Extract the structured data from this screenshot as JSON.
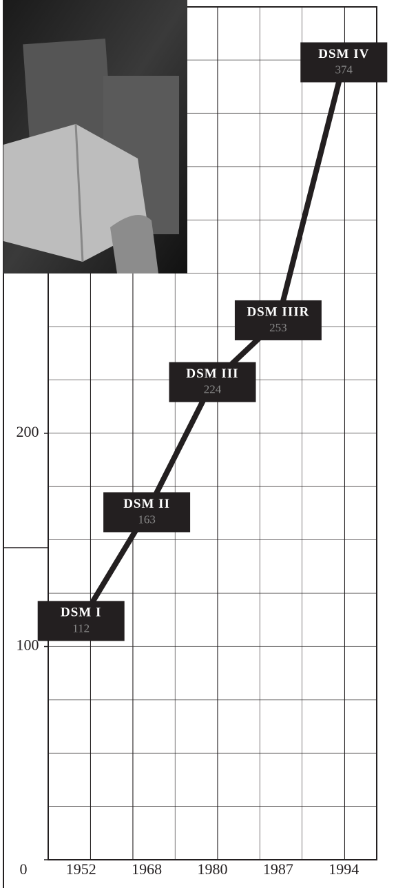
{
  "chart_data": {
    "type": "line",
    "categories": [
      "1952",
      "1968",
      "1980",
      "1987",
      "1994"
    ],
    "values": [
      112,
      163,
      224,
      253,
      374
    ],
    "point_labels": [
      "DSM I",
      "DSM II",
      "DSM III",
      "DSM IIIR",
      "DSM IV"
    ],
    "color": "#231f20",
    "ylim": [
      0,
      400
    ],
    "yticks": [
      0,
      100,
      200
    ]
  }
}
